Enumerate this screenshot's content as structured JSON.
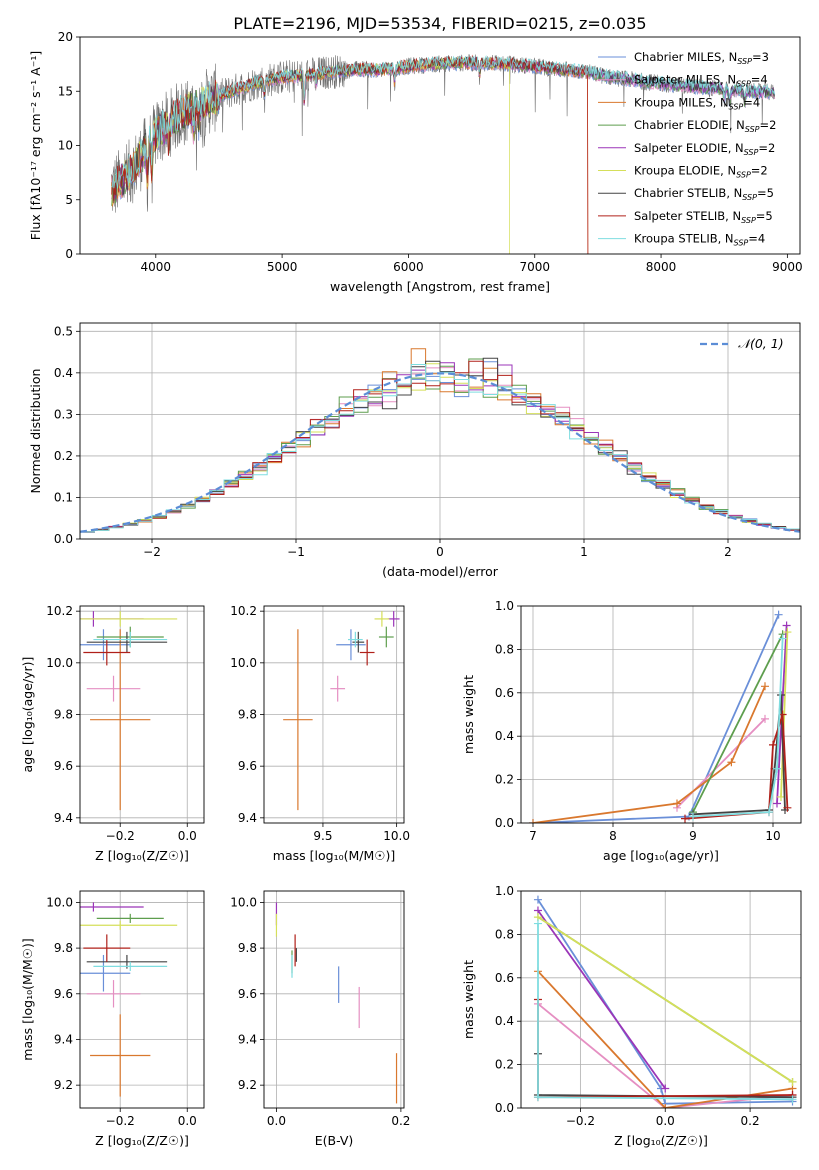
{
  "figure_title": "PLATE=2196, MJD=53534, FIBERID=0215, z=0.035",
  "models": [
    {
      "name": "Chabrier MILES",
      "nssp": "3",
      "color": "#6a8fd8"
    },
    {
      "name": "Salpeter MILES",
      "nssp": "4",
      "color": "#e58fc2"
    },
    {
      "name": "Kroupa MILES",
      "nssp": "4",
      "color": "#d9782e"
    },
    {
      "name": "Chabrier ELODIE",
      "nssp": "2",
      "color": "#5e9e4e"
    },
    {
      "name": "Salpeter ELODIE",
      "nssp": "2",
      "color": "#9b35b8"
    },
    {
      "name": "Kroupa ELODIE",
      "nssp": "2",
      "color": "#d5df5a"
    },
    {
      "name": "Chabrier STELIB",
      "nssp": "5",
      "color": "#444444"
    },
    {
      "name": "Salpeter STELIB",
      "nssp": "5",
      "color": "#b0201a"
    },
    {
      "name": "Kroupa STELIB",
      "nssp": "4",
      "color": "#7fdde0"
    }
  ],
  "chart_data": [
    {
      "id": "spectrum",
      "type": "line",
      "xlabel": "wavelength [Angstrom, rest frame]",
      "ylabel": "Flux [fλ10⁻¹⁷ erg cm⁻² s⁻¹ A⁻¹]",
      "xlim": [
        3400,
        9100
      ],
      "ylim": [
        0,
        20
      ],
      "xticks": [
        4000,
        5000,
        6000,
        7000,
        8000,
        9000
      ],
      "yticks": [
        0,
        5,
        10,
        15,
        20
      ],
      "continuum": [
        [
          3650,
          6.0
        ],
        [
          3800,
          7.5
        ],
        [
          4000,
          11.0
        ],
        [
          4200,
          13.0
        ],
        [
          4400,
          14.0
        ],
        [
          4600,
          15.0
        ],
        [
          4800,
          15.8
        ],
        [
          5000,
          16.3
        ],
        [
          5200,
          16.5
        ],
        [
          5400,
          16.8
        ],
        [
          5600,
          17.0
        ],
        [
          5800,
          17.0
        ],
        [
          6000,
          17.3
        ],
        [
          6200,
          17.5
        ],
        [
          6400,
          17.6
        ],
        [
          6600,
          17.6
        ],
        [
          6800,
          17.5
        ],
        [
          7000,
          17.3
        ],
        [
          7200,
          17.0
        ],
        [
          7400,
          16.8
        ],
        [
          7600,
          16.3
        ],
        [
          7800,
          16.0
        ],
        [
          8000,
          15.7
        ],
        [
          8200,
          15.5
        ],
        [
          8400,
          15.3
        ],
        [
          8600,
          15.1
        ],
        [
          8800,
          14.9
        ]
      ],
      "observed_range": [
        3650,
        8900
      ],
      "legend_position": "upper right"
    },
    {
      "id": "residuals",
      "type": "histogram",
      "xlabel": "(data-model)/error",
      "ylabel": "Normed distribution",
      "xlim": [
        -2.5,
        2.5
      ],
      "ylim": [
        0,
        0.52
      ],
      "xticks": [
        -2,
        -1,
        0,
        1,
        2
      ],
      "yticks": [
        0.0,
        0.1,
        0.2,
        0.3,
        0.4,
        0.5
      ],
      "reference_curve": {
        "label": "𝒩(0, 1)",
        "mean": 0,
        "sigma": 1,
        "style": "dashed"
      },
      "legend_position": "upper right",
      "grid": true
    },
    {
      "id": "age_vs_Z",
      "type": "errorbar",
      "xlabel": "Z [log₁₀(Z/Z☉)]",
      "ylabel": "age  [log₁₀(age/yr)]",
      "xlim": [
        -0.32,
        0.05
      ],
      "ylim": [
        9.38,
        10.22
      ],
      "xticks": [
        -0.2,
        0.0
      ],
      "yticks": [
        9.4,
        9.6,
        9.8,
        10.0,
        10.2
      ],
      "grid": true,
      "points": [
        {
          "model": 0,
          "x": -0.25,
          "y": 10.07,
          "xerr": 0.08,
          "yerr": 0.06
        },
        {
          "model": 1,
          "x": -0.22,
          "y": 9.9,
          "xerr": 0.08,
          "yerr": 0.05
        },
        {
          "model": 2,
          "x": -0.2,
          "y": 9.78,
          "xerr": 0.09,
          "yerr": 0.35
        },
        {
          "model": 3,
          "x": -0.17,
          "y": 10.1,
          "xerr": 0.1,
          "yerr": 0.04
        },
        {
          "model": 4,
          "x": -0.28,
          "y": 10.17,
          "xerr": 0.15,
          "yerr": 0.03
        },
        {
          "model": 5,
          "x": -0.2,
          "y": 10.17,
          "xerr": 0.17,
          "yerr": 0.03
        },
        {
          "model": 6,
          "x": -0.18,
          "y": 10.08,
          "xerr": 0.12,
          "yerr": 0.04
        },
        {
          "model": 7,
          "x": -0.24,
          "y": 10.04,
          "xerr": 0.07,
          "yerr": 0.05
        },
        {
          "model": 8,
          "x": -0.17,
          "y": 10.09,
          "xerr": 0.11,
          "yerr": 0.03
        }
      ]
    },
    {
      "id": "age_vs_mass",
      "type": "errorbar",
      "xlabel": "mass [log₁₀(M/M☉)]",
      "ylabel": "",
      "xlim": [
        9.1,
        10.05
      ],
      "ylim": [
        9.38,
        10.22
      ],
      "xticks": [
        9.5,
        10.0
      ],
      "yticks": [
        9.4,
        9.6,
        9.8,
        10.0,
        10.2
      ],
      "grid": true,
      "points": [
        {
          "model": 0,
          "x": 9.69,
          "y": 10.07,
          "xerr": 0.1,
          "yerr": 0.06
        },
        {
          "model": 1,
          "x": 9.6,
          "y": 9.9,
          "xerr": 0.05,
          "yerr": 0.05
        },
        {
          "model": 2,
          "x": 9.33,
          "y": 9.78,
          "xerr": 0.1,
          "yerr": 0.35
        },
        {
          "model": 3,
          "x": 9.93,
          "y": 10.1,
          "xerr": 0.05,
          "yerr": 0.04
        },
        {
          "model": 4,
          "x": 9.98,
          "y": 10.17,
          "xerr": 0.04,
          "yerr": 0.03
        },
        {
          "model": 5,
          "x": 9.9,
          "y": 10.17,
          "xerr": 0.05,
          "yerr": 0.03
        },
        {
          "model": 6,
          "x": 9.74,
          "y": 10.08,
          "xerr": 0.04,
          "yerr": 0.04
        },
        {
          "model": 7,
          "x": 9.8,
          "y": 10.04,
          "xerr": 0.05,
          "yerr": 0.05
        },
        {
          "model": 8,
          "x": 9.72,
          "y": 10.09,
          "xerr": 0.05,
          "yerr": 0.03
        }
      ]
    },
    {
      "id": "weight_vs_age",
      "type": "line",
      "xlabel": "age  [log₁₀(age/yr)]",
      "ylabel": "mass weight",
      "xlim": [
        6.85,
        10.35
      ],
      "ylim": [
        0,
        1.0
      ],
      "xticks": [
        7,
        8,
        9,
        10
      ],
      "yticks": [
        0.0,
        0.2,
        0.4,
        0.6,
        0.8,
        1.0
      ],
      "grid": true,
      "series": [
        {
          "model": 0,
          "points": [
            [
              7.0,
              0.0
            ],
            [
              8.95,
              0.03
            ],
            [
              10.07,
              0.96
            ]
          ]
        },
        {
          "model": 1,
          "points": [
            [
              8.8,
              0.07
            ],
            [
              9.9,
              0.48
            ]
          ]
        },
        {
          "model": 2,
          "points": [
            [
              7.0,
              0.0
            ],
            [
              8.8,
              0.09
            ],
            [
              9.48,
              0.28
            ],
            [
              9.9,
              0.63
            ]
          ]
        },
        {
          "model": 3,
          "points": [
            [
              9.0,
              0.05
            ],
            [
              10.12,
              0.87
            ]
          ]
        },
        {
          "model": 4,
          "points": [
            [
              10.05,
              0.09
            ],
            [
              10.17,
              0.91
            ]
          ]
        },
        {
          "model": 5,
          "points": [
            [
              10.1,
              0.12
            ],
            [
              10.18,
              0.88
            ]
          ]
        },
        {
          "model": 6,
          "points": [
            [
              9.0,
              0.04
            ],
            [
              9.95,
              0.06
            ],
            [
              10.02,
              0.25
            ],
            [
              10.1,
              0.59
            ],
            [
              10.15,
              0.06
            ]
          ]
        },
        {
          "model": 7,
          "points": [
            [
              8.9,
              0.02
            ],
            [
              9.95,
              0.05
            ],
            [
              10.0,
              0.36
            ],
            [
              10.12,
              0.5
            ],
            [
              10.18,
              0.07
            ]
          ]
        },
        {
          "model": 8,
          "points": [
            [
              9.0,
              0.03
            ],
            [
              9.95,
              0.05
            ],
            [
              10.05,
              0.25
            ],
            [
              10.12,
              0.85
            ]
          ]
        }
      ]
    },
    {
      "id": "mass_vs_Z",
      "type": "errorbar",
      "xlabel": "Z [log₁₀(Z/Z☉)]",
      "ylabel": "mass [log₁₀(M/M☉)]",
      "xlim": [
        -0.32,
        0.05
      ],
      "ylim": [
        9.1,
        10.05
      ],
      "xticks": [
        -0.2,
        0.0
      ],
      "yticks": [
        9.2,
        9.4,
        9.6,
        9.8,
        10.0
      ],
      "grid": true,
      "points": [
        {
          "model": 0,
          "x": -0.25,
          "y": 9.69,
          "xerr": 0.08,
          "yerr": 0.08
        },
        {
          "model": 1,
          "x": -0.22,
          "y": 9.6,
          "xerr": 0.08,
          "yerr": 0.06
        },
        {
          "model": 2,
          "x": -0.2,
          "y": 9.33,
          "xerr": 0.09,
          "yerr": 0.18
        },
        {
          "model": 3,
          "x": -0.17,
          "y": 9.93,
          "xerr": 0.1,
          "yerr": 0.02
        },
        {
          "model": 4,
          "x": -0.28,
          "y": 9.98,
          "xerr": 0.15,
          "yerr": 0.02
        },
        {
          "model": 5,
          "x": -0.2,
          "y": 9.9,
          "xerr": 0.17,
          "yerr": 0.02
        },
        {
          "model": 6,
          "x": -0.18,
          "y": 9.74,
          "xerr": 0.12,
          "yerr": 0.03
        },
        {
          "model": 7,
          "x": -0.24,
          "y": 9.8,
          "xerr": 0.07,
          "yerr": 0.06
        },
        {
          "model": 8,
          "x": -0.17,
          "y": 9.72,
          "xerr": 0.11,
          "yerr": 0.02
        }
      ]
    },
    {
      "id": "mass_vs_ebv",
      "type": "errorbar",
      "xlabel": "E(B-V)",
      "ylabel": "",
      "xlim": [
        -0.02,
        0.205
      ],
      "ylim": [
        9.1,
        10.05
      ],
      "xticks": [
        0.0,
        0.2
      ],
      "yticks": [
        9.2,
        9.4,
        9.6,
        9.8,
        10.0
      ],
      "grid": true,
      "points": [
        {
          "model": 0,
          "x": 0.1,
          "y": 9.64,
          "xerr": 0,
          "yerr": 0.08
        },
        {
          "model": 1,
          "x": 0.133,
          "y": 9.54,
          "xerr": 0,
          "yerr": 0.09
        },
        {
          "model": 2,
          "x": 0.193,
          "y": 9.23,
          "xerr": 0,
          "yerr": 0.11
        },
        {
          "model": 3,
          "x": 0.025,
          "y": 9.74,
          "xerr": 0,
          "yerr": 0.05
        },
        {
          "model": 4,
          "x": 0.0,
          "y": 9.95,
          "xerr": 0,
          "yerr": 0.05
        },
        {
          "model": 5,
          "x": 0.0,
          "y": 9.9,
          "xerr": 0,
          "yerr": 0.05
        },
        {
          "model": 6,
          "x": 0.032,
          "y": 9.77,
          "xerr": 0,
          "yerr": 0.03
        },
        {
          "model": 7,
          "x": 0.03,
          "y": 9.79,
          "xerr": 0,
          "yerr": 0.07
        },
        {
          "model": 8,
          "x": 0.025,
          "y": 9.72,
          "xerr": 0,
          "yerr": 0.05
        }
      ]
    },
    {
      "id": "weight_vs_Z",
      "type": "line",
      "xlabel": "Z [log₁₀(Z/Z☉)]",
      "ylabel": "mass weight",
      "xlim": [
        -0.34,
        0.32
      ],
      "ylim": [
        0,
        1.0
      ],
      "xticks": [
        -0.2,
        0.0,
        0.2
      ],
      "yticks": [
        0.0,
        0.2,
        0.4,
        0.6,
        0.8,
        1.0
      ],
      "grid": true,
      "series": [
        {
          "model": 0,
          "points": [
            [
              -0.3,
              0.96
            ],
            [
              -0.01,
              0.09
            ],
            [
              0.0,
              0.02
            ],
            [
              0.3,
              0.03
            ]
          ]
        },
        {
          "model": 1,
          "points": [
            [
              -0.3,
              0.48
            ],
            [
              0.0,
              0.0
            ],
            [
              0.3,
              0.06
            ]
          ]
        },
        {
          "model": 2,
          "points": [
            [
              -0.3,
              0.63
            ],
            [
              0.0,
              0.0
            ],
            [
              0.3,
              0.09
            ]
          ]
        },
        {
          "model": 3,
          "points": [
            [
              -0.3,
              0.88
            ],
            [
              0.3,
              0.12
            ]
          ]
        },
        {
          "model": 4,
          "points": [
            [
              -0.3,
              0.91
            ],
            [
              0.0,
              0.09
            ]
          ]
        },
        {
          "model": 5,
          "points": [
            [
              -0.3,
              0.88
            ],
            [
              0.3,
              0.12
            ]
          ]
        },
        {
          "model": 6,
          "points": [
            [
              -0.3,
              0.25
            ],
            [
              -0.3,
              0.06
            ],
            [
              0.3,
              0.05
            ]
          ]
        },
        {
          "model": 7,
          "points": [
            [
              -0.3,
              0.5
            ],
            [
              -0.3,
              0.05
            ],
            [
              0.3,
              0.06
            ]
          ]
        },
        {
          "model": 8,
          "points": [
            [
              -0.3,
              0.85
            ],
            [
              -0.3,
              0.05
            ],
            [
              0.3,
              0.04
            ]
          ]
        }
      ]
    }
  ]
}
